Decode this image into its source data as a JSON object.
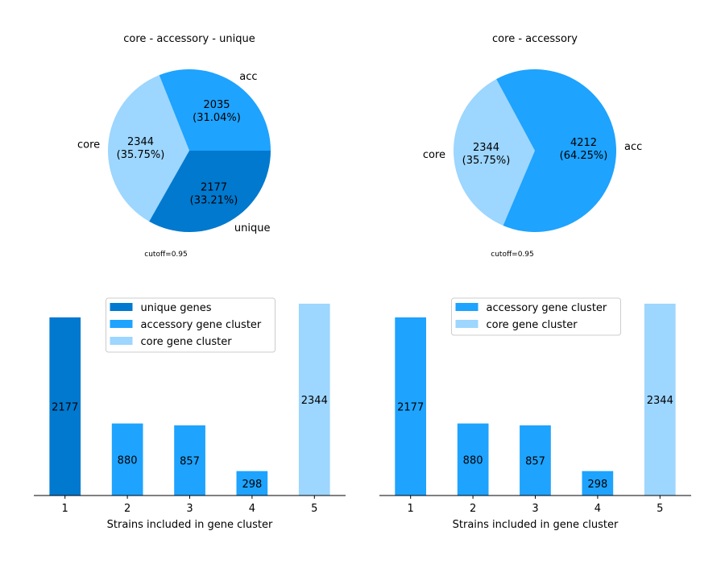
{
  "colors": {
    "unique": "#0079cf",
    "accessory": "#1ea3fe",
    "core": "#9dd6fe"
  },
  "chart_data": [
    {
      "type": "pie",
      "title": "core - accessory - unique",
      "note": "cutoff=0.95",
      "slices": [
        {
          "label": "acc",
          "value": 2035,
          "pct": "31.04%",
          "color": "#1ea3fe"
        },
        {
          "label": "core",
          "value": 2344,
          "pct": "35.75%",
          "color": "#9dd6fe"
        },
        {
          "label": "unique",
          "value": 2177,
          "pct": "33.21%",
          "color": "#0079cf"
        }
      ]
    },
    {
      "type": "pie",
      "title": "core - accessory",
      "note": "cutoff=0.95",
      "slices": [
        {
          "label": "core",
          "value": 2344,
          "pct": "35.75%",
          "color": "#9dd6fe"
        },
        {
          "label": "acc",
          "value": 4212,
          "pct": "64.25%",
          "color": "#1ea3fe"
        }
      ]
    },
    {
      "type": "bar",
      "xlabel": "Strains included in gene cluster",
      "categories": [
        "1",
        "2",
        "3",
        "4",
        "5"
      ],
      "values": [
        2177,
        880,
        857,
        298,
        2344
      ],
      "bar_colors": [
        "#0079cf",
        "#1ea3fe",
        "#1ea3fe",
        "#1ea3fe",
        "#9dd6fe"
      ],
      "legend": [
        {
          "label": "unique genes",
          "color": "#0079cf"
        },
        {
          "label": "accessory gene cluster",
          "color": "#1ea3fe"
        },
        {
          "label": "core gene cluster",
          "color": "#9dd6fe"
        }
      ],
      "legend_position": "top-center"
    },
    {
      "type": "bar",
      "xlabel": "Strains included in gene cluster",
      "categories": [
        "1",
        "2",
        "3",
        "4",
        "5"
      ],
      "values": [
        2177,
        880,
        857,
        298,
        2344
      ],
      "bar_colors": [
        "#1ea3fe",
        "#1ea3fe",
        "#1ea3fe",
        "#1ea3fe",
        "#9dd6fe"
      ],
      "legend": [
        {
          "label": "accessory gene cluster",
          "color": "#1ea3fe"
        },
        {
          "label": "core gene cluster",
          "color": "#9dd6fe"
        }
      ],
      "legend_position": "top-center"
    }
  ]
}
